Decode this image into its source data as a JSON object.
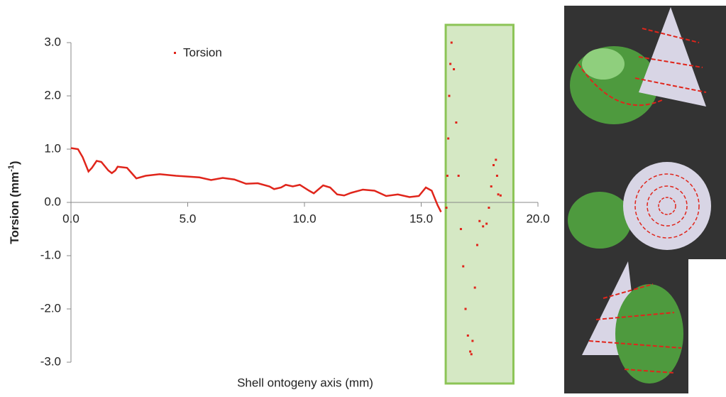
{
  "chart_data": {
    "type": "line",
    "x_label": "Shell ontogeny axis (mm)",
    "y_label": "Torsion (mm",
    "y_label_sup": "-1",
    "y_label_end": ")",
    "xlim": [
      0,
      20
    ],
    "ylim": [
      -3,
      3
    ],
    "xticks": [
      {
        "value": 0,
        "label": "0.0"
      },
      {
        "value": 5,
        "label": "5.0"
      },
      {
        "value": 10,
        "label": "10.0"
      },
      {
        "value": 15,
        "label": "15.0"
      },
      {
        "value": 20,
        "label": "20.0"
      }
    ],
    "yticks": [
      {
        "value": -3,
        "label": "-3.0"
      },
      {
        "value": -2,
        "label": "-2.0"
      },
      {
        "value": -1,
        "label": "-1.0"
      },
      {
        "value": 0,
        "label": "0.0"
      },
      {
        "value": 1,
        "label": "1.0"
      },
      {
        "value": 2,
        "label": "2.0"
      },
      {
        "value": 3,
        "label": "3.0"
      }
    ],
    "highlight_x": [
      16.05,
      18.95
    ],
    "series": [
      {
        "name": "Torsion",
        "color": "#e0251b",
        "x": [
          0,
          0.3,
          0.5,
          0.75,
          0.9,
          1.1,
          1.3,
          1.6,
          1.75,
          1.9,
          2.0,
          2.4,
          2.6,
          2.8,
          3.2,
          3.8,
          4.5,
          5.5,
          6.0,
          6.5,
          7.0,
          7.5,
          8.0,
          8.5,
          8.7,
          9.0,
          9.2,
          9.5,
          9.8,
          10.2,
          10.4,
          10.8,
          11.1,
          11.4,
          11.7,
          12.0,
          12.5,
          13.0,
          13.5,
          14.0,
          14.5,
          14.9,
          15.2,
          15.45,
          15.7,
          15.85,
          16.08,
          16.12,
          16.16,
          16.2,
          16.25,
          16.3,
          16.4,
          16.5,
          16.6,
          16.7,
          16.8,
          16.9,
          17.0,
          17.1,
          17.15,
          17.2,
          17.3,
          17.4,
          17.5,
          17.65,
          17.8,
          17.9,
          18.0,
          18.1,
          18.2,
          18.25,
          18.3,
          18.4
        ],
        "values": [
          1.02,
          1.0,
          0.85,
          0.58,
          0.65,
          0.78,
          0.76,
          0.6,
          0.55,
          0.6,
          0.67,
          0.65,
          0.55,
          0.45,
          0.5,
          0.53,
          0.5,
          0.47,
          0.42,
          0.46,
          0.43,
          0.35,
          0.36,
          0.3,
          0.25,
          0.28,
          0.33,
          0.3,
          0.33,
          0.22,
          0.17,
          0.32,
          0.28,
          0.15,
          0.13,
          0.18,
          0.24,
          0.22,
          0.12,
          0.15,
          0.1,
          0.12,
          0.28,
          0.22,
          -0.05,
          -0.18,
          -0.1,
          0.5,
          1.2,
          2.0,
          2.6,
          3.0,
          2.5,
          1.5,
          0.5,
          -0.5,
          -1.2,
          -2.0,
          -2.5,
          -2.8,
          -2.85,
          -2.6,
          -1.6,
          -0.8,
          -0.35,
          -0.45,
          -0.4,
          -0.1,
          0.3,
          0.7,
          0.8,
          0.5,
          0.15,
          0.13
        ]
      }
    ]
  }
}
